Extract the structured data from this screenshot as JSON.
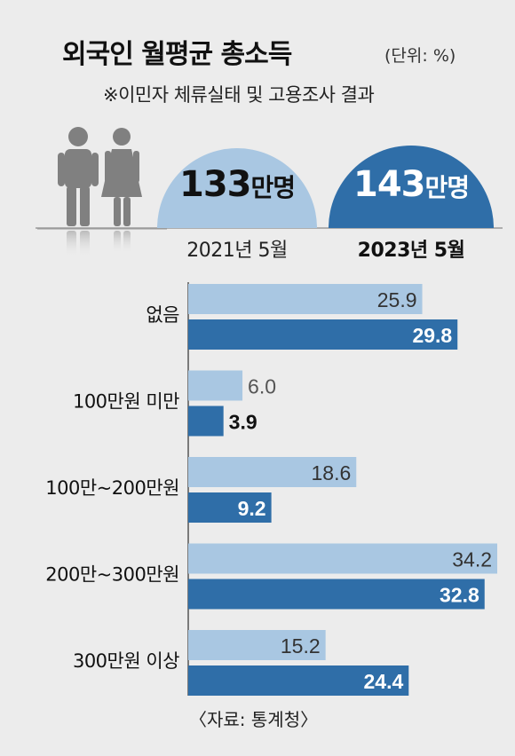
{
  "header": {
    "title": "외국인 월평균 총소득",
    "unit": "(단위: %)",
    "subtitle": "※이민자 체류실태 및 고용조사 결과"
  },
  "population": [
    {
      "year_label": "2021년 5월",
      "count": "133",
      "count_unit": "만명",
      "color": "#a9c7e2",
      "text_color": "#111111"
    },
    {
      "year_label": "2023년 5월",
      "count": "143",
      "count_unit": "만명",
      "color": "#2f6ea8",
      "text_color": "#ffffff"
    }
  ],
  "chart_data": {
    "type": "bar",
    "orientation": "horizontal",
    "categories": [
      "없음",
      "100만원 미만",
      "100만~200만원",
      "200만~300만원",
      "300만원 이상"
    ],
    "series": [
      {
        "name": "2021년 5월",
        "values": [
          25.9,
          6.0,
          18.6,
          34.2,
          15.2
        ],
        "color": "#a9c7e2"
      },
      {
        "name": "2023년 5월",
        "values": [
          29.8,
          3.9,
          9.2,
          32.8,
          24.4
        ],
        "color": "#2f6ea8"
      }
    ]
  },
  "source": "〈자료: 통계청〉",
  "colors": {
    "background": "#ececec",
    "people": "#808080"
  }
}
